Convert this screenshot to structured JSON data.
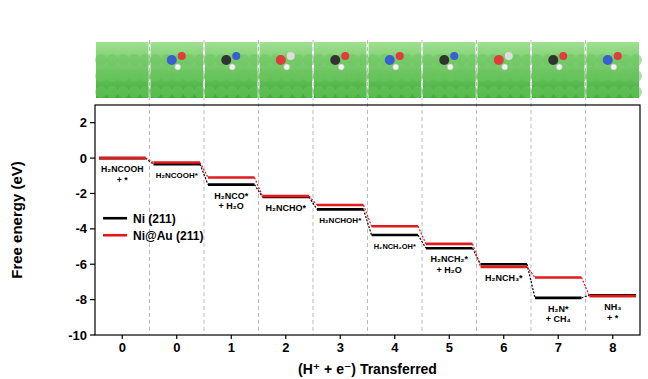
{
  "chart_data": {
    "type": "step",
    "x_label": "(H⁺ + e⁻) Transferred",
    "y_label": "Free energy (eV)",
    "categories": [
      "0",
      "0",
      "1",
      "2",
      "3",
      "4",
      "5",
      "6",
      "7",
      "8"
    ],
    "step_labels": [
      "H₂NCOOH + *",
      "H₂NCOOH*",
      "H₂NCO* + H₂O",
      "H₂NCHO*",
      "H₂NCHOH*",
      "H₂NCH₂OH*",
      "H₂NCH₂* + H₂O",
      "H₂NCH₃*",
      "H₂N* + CH₄",
      "NH₃ + *"
    ],
    "series": [
      {
        "name": "Ni (211)",
        "color": "#000000",
        "values": [
          0,
          -0.35,
          -1.5,
          -2.2,
          -2.9,
          -4.35,
          -5.1,
          -6.0,
          -7.9,
          -7.75
        ]
      },
      {
        "name": "Ni@Au (211)",
        "color": "#e31a1c",
        "values": [
          0,
          -0.25,
          -1.1,
          -2.15,
          -2.65,
          -3.85,
          -4.85,
          -6.15,
          -6.75,
          -7.8
        ]
      }
    ],
    "ylim": [
      -10,
      3
    ],
    "yticks": [
      -10,
      -8,
      -6,
      -4,
      -2,
      0,
      2
    ],
    "legend": "upper left",
    "grid": false
  }
}
